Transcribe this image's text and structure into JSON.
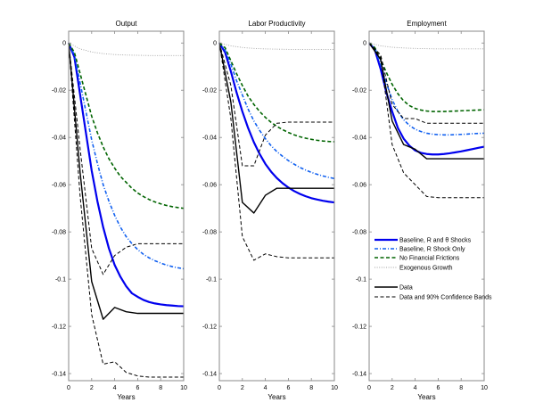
{
  "chart_data": [
    {
      "type": "line",
      "title": "Output",
      "xlabel": "Years",
      "ylabel": "",
      "xlim": [
        0,
        10
      ],
      "ylim": [
        -0.143,
        0.005
      ],
      "xticks": [
        "0",
        "2",
        "4",
        "6",
        "8",
        "10"
      ],
      "yticks": [
        "0",
        "-0.02",
        "-0.04",
        "-0.06",
        "-0.08",
        "-0.1",
        "-0.12",
        "-0.14"
      ],
      "grid": false,
      "series": [
        {
          "key": "baseline",
          "name": "Baseline, R and θ Shocks",
          "x": [
            0,
            0.5,
            1,
            1.5,
            2,
            2.5,
            3,
            3.5,
            4,
            4.5,
            5,
            5.5,
            6,
            6.5,
            7,
            7.5,
            8,
            8.5,
            9,
            9.5,
            10
          ],
          "y": [
            0,
            -0.006,
            -0.022,
            -0.038,
            -0.054,
            -0.067,
            -0.078,
            -0.087,
            -0.094,
            -0.099,
            -0.103,
            -0.106,
            -0.1075,
            -0.1088,
            -0.1097,
            -0.1103,
            -0.1107,
            -0.111,
            -0.1112,
            -0.1114,
            -0.1115
          ]
        },
        {
          "key": "r_only",
          "name": "Baseline, R Shock Only",
          "x": [
            0,
            0.5,
            1,
            1.5,
            2,
            2.5,
            3,
            3.5,
            4,
            4.5,
            5,
            5.5,
            6,
            6.5,
            7,
            7.5,
            8,
            8.5,
            9,
            9.5,
            10
          ],
          "y": [
            0,
            -0.005,
            -0.017,
            -0.029,
            -0.041,
            -0.051,
            -0.06,
            -0.067,
            -0.073,
            -0.078,
            -0.082,
            -0.085,
            -0.0875,
            -0.0895,
            -0.091,
            -0.0922,
            -0.0932,
            -0.094,
            -0.0947,
            -0.0952,
            -0.0956
          ]
        },
        {
          "key": "no_fin",
          "name": "No Financial Frictions",
          "x": [
            0,
            0.5,
            1,
            1.5,
            2,
            2.5,
            3,
            3.5,
            4,
            4.5,
            5,
            5.5,
            6,
            6.5,
            7,
            7.5,
            8,
            8.5,
            9,
            9.5,
            10
          ],
          "y": [
            0,
            -0.004,
            -0.013,
            -0.022,
            -0.031,
            -0.038,
            -0.044,
            -0.049,
            -0.053,
            -0.0565,
            -0.059,
            -0.0615,
            -0.0635,
            -0.065,
            -0.0663,
            -0.0673,
            -0.0681,
            -0.0688,
            -0.0693,
            -0.0697,
            -0.07
          ]
        },
        {
          "key": "exog",
          "name": "Exogenous Growth",
          "x": [
            0,
            1,
            2,
            3,
            4,
            5,
            6,
            7,
            8,
            9,
            10
          ],
          "y": [
            0,
            -0.0025,
            -0.0038,
            -0.0045,
            -0.0049,
            -0.0051,
            -0.0052,
            -0.0053,
            -0.0053,
            -0.0053,
            -0.0053
          ]
        },
        {
          "key": "data",
          "name": "Data",
          "x": [
            0,
            1,
            2,
            3,
            4,
            5,
            6,
            7,
            8,
            9,
            10
          ],
          "y": [
            0,
            -0.055,
            -0.101,
            -0.117,
            -0.112,
            -0.1138,
            -0.1145,
            -0.1145,
            -0.1145,
            -0.1145,
            -0.1145
          ]
        },
        {
          "key": "band_upper",
          "name": "Data and 90% Confidence Bands",
          "x": [
            0,
            1,
            2,
            3,
            4,
            5,
            6,
            7,
            8,
            9,
            10
          ],
          "y": [
            0,
            -0.045,
            -0.087,
            -0.098,
            -0.09,
            -0.0865,
            -0.085,
            -0.085,
            -0.085,
            -0.085,
            -0.085
          ]
        },
        {
          "key": "band_lower",
          "name": "Data and 90% Confidence Bands",
          "x": [
            0,
            1,
            2,
            3,
            4,
            5,
            6,
            7,
            8,
            9,
            10
          ],
          "y": [
            0,
            -0.065,
            -0.115,
            -0.136,
            -0.135,
            -0.1395,
            -0.141,
            -0.1415,
            -0.1415,
            -0.1415,
            -0.1415
          ]
        }
      ]
    },
    {
      "type": "line",
      "title": "Labor Productivity",
      "xlabel": "Years",
      "ylabel": "",
      "xlim": [
        0,
        10
      ],
      "ylim": [
        -0.143,
        0.005
      ],
      "xticks": [
        "0",
        "2",
        "4",
        "6",
        "8",
        "10"
      ],
      "yticks": [
        "0",
        "-0.02",
        "-0.04",
        "-0.06",
        "-0.08",
        "-0.1",
        "-0.12",
        "-0.14"
      ],
      "grid": false,
      "series": [
        {
          "key": "baseline",
          "name": "Baseline, R and θ Shocks",
          "x": [
            0,
            0.5,
            1,
            1.5,
            2,
            2.5,
            3,
            3.5,
            4,
            4.5,
            5,
            5.5,
            6,
            6.5,
            7,
            7.5,
            8,
            8.5,
            9,
            9.5,
            10
          ],
          "y": [
            0,
            -0.004,
            -0.012,
            -0.021,
            -0.029,
            -0.036,
            -0.042,
            -0.047,
            -0.0512,
            -0.0545,
            -0.0572,
            -0.0594,
            -0.0612,
            -0.0627,
            -0.0639,
            -0.0649,
            -0.0657,
            -0.0663,
            -0.0668,
            -0.0672,
            -0.0675
          ]
        },
        {
          "key": "r_only",
          "name": "Baseline, R Shock Only",
          "x": [
            0,
            0.5,
            1,
            1.5,
            2,
            2.5,
            3,
            3.5,
            4,
            4.5,
            5,
            5.5,
            6,
            6.5,
            7,
            7.5,
            8,
            8.5,
            9,
            9.5,
            10
          ],
          "y": [
            0,
            -0.003,
            -0.009,
            -0.016,
            -0.022,
            -0.028,
            -0.033,
            -0.037,
            -0.0405,
            -0.0435,
            -0.046,
            -0.048,
            -0.0498,
            -0.0513,
            -0.0527,
            -0.0538,
            -0.0548,
            -0.0556,
            -0.0563,
            -0.0569,
            -0.0574
          ]
        },
        {
          "key": "no_fin",
          "name": "No Financial Frictions",
          "x": [
            0,
            0.5,
            1,
            1.5,
            2,
            2.5,
            3,
            3.5,
            4,
            4.5,
            5,
            5.5,
            6,
            6.5,
            7,
            7.5,
            8,
            8.5,
            9,
            9.5,
            10
          ],
          "y": [
            0,
            -0.002,
            -0.0075,
            -0.013,
            -0.018,
            -0.0225,
            -0.026,
            -0.029,
            -0.0315,
            -0.0336,
            -0.0353,
            -0.0367,
            -0.0379,
            -0.0389,
            -0.0397,
            -0.0403,
            -0.0408,
            -0.0412,
            -0.0415,
            -0.0417,
            -0.0418
          ]
        },
        {
          "key": "exog",
          "name": "Exogenous Growth",
          "x": [
            0,
            1,
            2,
            3,
            4,
            5,
            6,
            7,
            8,
            9,
            10
          ],
          "y": [
            0,
            -0.0012,
            -0.0019,
            -0.0023,
            -0.0025,
            -0.0026,
            -0.0027,
            -0.0027,
            -0.0027,
            -0.0027,
            -0.0027
          ]
        },
        {
          "key": "data",
          "name": "Data",
          "x": [
            0,
            1,
            2,
            3,
            4,
            5,
            6,
            7,
            8,
            9,
            10
          ],
          "y": [
            0,
            -0.025,
            -0.0675,
            -0.072,
            -0.0645,
            -0.0615,
            -0.0615,
            -0.0615,
            -0.0615,
            -0.0615,
            -0.0615
          ]
        },
        {
          "key": "band_upper",
          "name": "Data and 90% Confidence Bands",
          "x": [
            0,
            1,
            2,
            3,
            4,
            5,
            6,
            7,
            8,
            9,
            10
          ],
          "y": [
            0,
            -0.018,
            -0.052,
            -0.052,
            -0.039,
            -0.034,
            -0.0335,
            -0.0335,
            -0.0335,
            -0.0335,
            -0.0335
          ]
        },
        {
          "key": "band_lower",
          "name": "Data and 90% Confidence Bands",
          "x": [
            0,
            1,
            2,
            3,
            4,
            5,
            6,
            7,
            8,
            9,
            10
          ],
          "y": [
            0,
            -0.032,
            -0.082,
            -0.092,
            -0.0893,
            -0.0905,
            -0.091,
            -0.091,
            -0.091,
            -0.091,
            -0.091
          ]
        }
      ]
    },
    {
      "type": "line",
      "title": "Employment",
      "xlabel": "Years",
      "ylabel": "",
      "xlim": [
        0,
        10
      ],
      "ylim": [
        -0.143,
        0.005
      ],
      "xticks": [
        "0",
        "2",
        "4",
        "6",
        "8",
        "10"
      ],
      "yticks": [
        "0",
        "-0.02",
        "-0.04",
        "-0.06",
        "-0.08",
        "-0.1",
        "-0.12",
        "-0.14"
      ],
      "grid": false,
      "series": [
        {
          "key": "baseline",
          "name": "Baseline, R and θ Shocks",
          "x": [
            0,
            0.5,
            1,
            1.5,
            2,
            2.5,
            3,
            3.5,
            4,
            4.5,
            5,
            5.5,
            6,
            6.5,
            7,
            7.5,
            8,
            8.5,
            9,
            9.5,
            10
          ],
          "y": [
            0,
            -0.003,
            -0.011,
            -0.021,
            -0.029,
            -0.036,
            -0.0405,
            -0.0435,
            -0.0455,
            -0.0465,
            -0.047,
            -0.0472,
            -0.0472,
            -0.047,
            -0.0467,
            -0.0463,
            -0.0459,
            -0.0454,
            -0.0449,
            -0.0444,
            -0.0439
          ]
        },
        {
          "key": "r_only",
          "name": "Baseline, R Shock Only",
          "x": [
            0,
            0.5,
            1,
            1.5,
            2,
            2.5,
            3,
            3.5,
            4,
            4.5,
            5,
            5.5,
            6,
            6.5,
            7,
            7.5,
            8,
            8.5,
            9,
            9.5,
            10
          ],
          "y": [
            0,
            -0.002,
            -0.009,
            -0.017,
            -0.024,
            -0.029,
            -0.0325,
            -0.0349,
            -0.0365,
            -0.0375,
            -0.0382,
            -0.0386,
            -0.0388,
            -0.0389,
            -0.0389,
            -0.0388,
            -0.0387,
            -0.0386,
            -0.0384,
            -0.0383,
            -0.0382
          ]
        },
        {
          "key": "no_fin",
          "name": "No Financial Frictions",
          "x": [
            0,
            0.5,
            1,
            1.5,
            2,
            2.5,
            3,
            3.5,
            4,
            4.5,
            5,
            5.5,
            6,
            6.5,
            7,
            7.5,
            8,
            8.5,
            9,
            9.5,
            10
          ],
          "y": [
            0,
            -0.002,
            -0.007,
            -0.0125,
            -0.0175,
            -0.0215,
            -0.0245,
            -0.0265,
            -0.0277,
            -0.0284,
            -0.0288,
            -0.029,
            -0.029,
            -0.029,
            -0.0289,
            -0.0288,
            -0.0287,
            -0.0286,
            -0.0285,
            -0.0284,
            -0.0283
          ]
        },
        {
          "key": "exog",
          "name": "Exogenous Growth",
          "x": [
            0,
            1,
            2,
            3,
            4,
            5,
            6,
            7,
            8,
            9,
            10
          ],
          "y": [
            0,
            -0.0012,
            -0.0018,
            -0.0021,
            -0.0023,
            -0.0024,
            -0.0025,
            -0.0025,
            -0.0025,
            -0.0025,
            -0.0025
          ]
        },
        {
          "key": "data",
          "name": "Data",
          "x": [
            0,
            1,
            2,
            3,
            4,
            5,
            6,
            7,
            8,
            9,
            10
          ],
          "y": [
            0,
            -0.007,
            -0.033,
            -0.043,
            -0.045,
            -0.049,
            -0.049,
            -0.049,
            -0.049,
            -0.049,
            -0.049
          ]
        },
        {
          "key": "band_upper",
          "name": "Data and 90% Confidence Bands",
          "x": [
            0,
            1,
            2,
            3,
            4,
            5,
            6,
            7,
            8,
            9,
            10
          ],
          "y": [
            0,
            -0.005,
            -0.026,
            -0.032,
            -0.032,
            -0.034,
            -0.034,
            -0.034,
            -0.034,
            -0.034,
            -0.034
          ]
        },
        {
          "key": "band_lower",
          "name": "Data and 90% Confidence Bands",
          "x": [
            0,
            1,
            2,
            3,
            4,
            5,
            6,
            7,
            8,
            9,
            10
          ],
          "y": [
            0,
            -0.006,
            -0.043,
            -0.055,
            -0.06,
            -0.065,
            -0.0655,
            -0.0655,
            -0.0655,
            -0.0655,
            -0.0655
          ]
        }
      ]
    }
  ],
  "legend": {
    "placement": "inside Employment panel, lower-middle",
    "entries": [
      {
        "key": "baseline",
        "label": "Baseline, R and θ Shocks"
      },
      {
        "key": "r_only",
        "label": "Baseline, R Shock Only"
      },
      {
        "key": "no_fin",
        "label": "No Financial Frictions"
      },
      {
        "key": "exog",
        "label": "Exogenous Growth"
      },
      {
        "key": "data",
        "label": "Data"
      },
      {
        "key": "band_upper",
        "label": "Data and 90% Confidence Bands"
      }
    ]
  },
  "styles": {
    "baseline": {
      "color": "#0000ee",
      "dash": "solid"
    },
    "r_only": {
      "color": "#1060f0",
      "dash": "dashdot"
    },
    "no_fin": {
      "color": "#006400",
      "dash": "dashed"
    },
    "exog": {
      "color": "#a0a0a0",
      "dash": "dotted"
    },
    "data": {
      "color": "#000000",
      "dash": "solid"
    },
    "band_upper": {
      "color": "#000000",
      "dash": "dashed"
    },
    "band_lower": {
      "color": "#000000",
      "dash": "dashed"
    }
  }
}
